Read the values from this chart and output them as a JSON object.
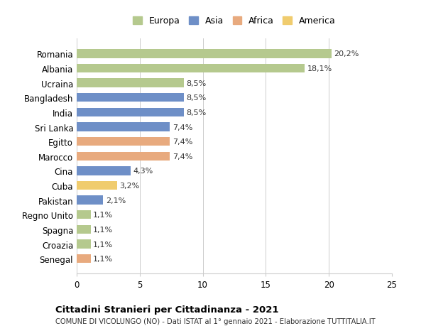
{
  "categories": [
    "Romania",
    "Albania",
    "Ucraina",
    "Bangladesh",
    "India",
    "Sri Lanka",
    "Egitto",
    "Marocco",
    "Cina",
    "Cuba",
    "Pakistan",
    "Regno Unito",
    "Spagna",
    "Croazia",
    "Senegal"
  ],
  "values": [
    20.2,
    18.1,
    8.5,
    8.5,
    8.5,
    7.4,
    7.4,
    7.4,
    4.3,
    3.2,
    2.1,
    1.1,
    1.1,
    1.1,
    1.1
  ],
  "labels": [
    "20,2%",
    "18,1%",
    "8,5%",
    "8,5%",
    "8,5%",
    "7,4%",
    "7,4%",
    "7,4%",
    "4,3%",
    "3,2%",
    "2,1%",
    "1,1%",
    "1,1%",
    "1,1%",
    "1,1%"
  ],
  "colors": [
    "#b5c98e",
    "#b5c98e",
    "#b5c98e",
    "#6e8fc7",
    "#6e8fc7",
    "#6e8fc7",
    "#e8aa7e",
    "#e8aa7e",
    "#6e8fc7",
    "#f0cc6e",
    "#6e8fc7",
    "#b5c98e",
    "#b5c98e",
    "#b5c98e",
    "#e8aa7e"
  ],
  "legend_labels": [
    "Europa",
    "Asia",
    "Africa",
    "America"
  ],
  "legend_colors": [
    "#b5c98e",
    "#6e8fc7",
    "#e8aa7e",
    "#f0cc6e"
  ],
  "title": "Cittadini Stranieri per Cittadinanza - 2021",
  "subtitle": "COMUNE DI VICOLUNGO (NO) - Dati ISTAT al 1° gennaio 2021 - Elaborazione TUTTITALIA.IT",
  "xlim": [
    0,
    25
  ],
  "xticks": [
    0,
    5,
    10,
    15,
    20,
    25
  ],
  "background_color": "#ffffff",
  "grid_color": "#cccccc"
}
